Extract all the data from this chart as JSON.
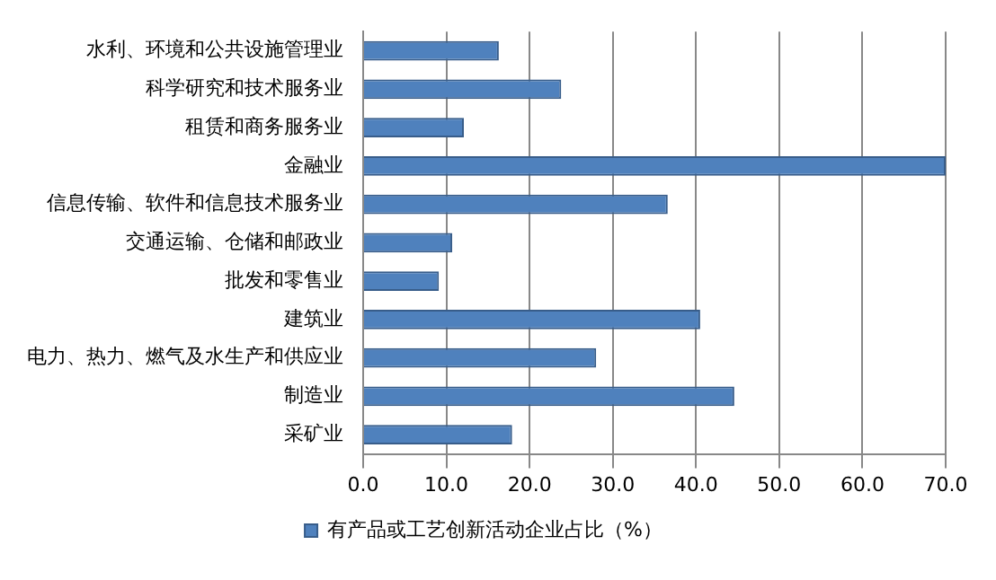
{
  "chart_data": {
    "type": "bar",
    "orientation": "horizontal",
    "categories": [
      "水利、环境和公共设施管理业",
      "科学研究和技术服务业",
      "租赁和商务服务业",
      "金融业",
      "信息传输、软件和信息技术服务业",
      "交通运输、仓储和邮政业",
      "批发和零售业",
      "建筑业",
      "电力、热力、燃气及水生产和供应业",
      "制造业",
      "采矿业"
    ],
    "series": [
      {
        "name": "有产品或工艺创新活动企业占比（%）",
        "color": "#4f81bd",
        "values": [
          16.3,
          23.8,
          12.1,
          70.0,
          36.6,
          10.7,
          9.1,
          40.5,
          28.0,
          44.6,
          17.9
        ]
      }
    ],
    "xlim": [
      0,
      70
    ],
    "xticks": [
      {
        "value": 0,
        "label": "0.0"
      },
      {
        "value": 10,
        "label": "10.0"
      },
      {
        "value": 20,
        "label": "20.0"
      },
      {
        "value": 30,
        "label": "30.0"
      },
      {
        "value": 40,
        "label": "40.0"
      },
      {
        "value": 50,
        "label": "50.0"
      },
      {
        "value": 60,
        "label": "60.0"
      },
      {
        "value": 70,
        "label": "70.0"
      }
    ],
    "grid": "x",
    "legend": "bottom"
  }
}
